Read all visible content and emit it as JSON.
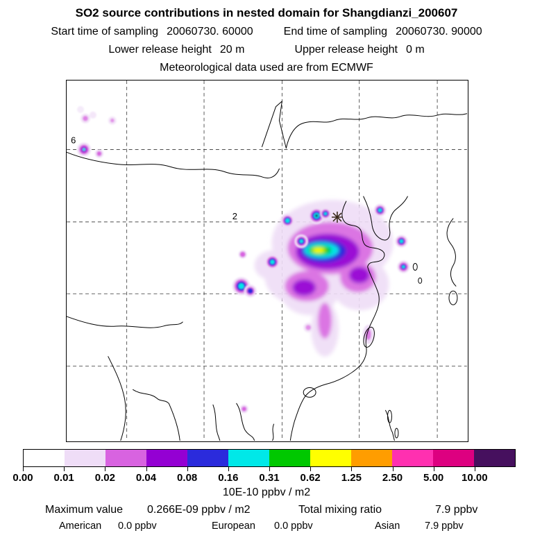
{
  "header": {
    "title": "SO2 source contributions in nested domain for Shangdianzi_200607",
    "sampling": {
      "start_label": "Start time of sampling",
      "start_value": "20060730. 60000",
      "end_label": "End time of sampling",
      "end_value": "20060730. 90000"
    },
    "release": {
      "lower_label": "Lower release height",
      "lower_value": "20 m",
      "upper_label": "Upper release height",
      "upper_value": "0 m"
    },
    "met_source": "Meteorological data used are from ECMWF"
  },
  "map": {
    "inline_labels": [
      {
        "text": "6"
      },
      {
        "text": "2"
      }
    ],
    "marker": "Shangdianzi station"
  },
  "colorbar": {
    "ticks": [
      "0.00",
      "0.01",
      "0.02",
      "0.04",
      "0.08",
      "0.16",
      "0.31",
      "0.62",
      "1.25",
      "2.50",
      "5.00",
      "10.00"
    ],
    "colors": [
      "#ffffff",
      "#efddf7",
      "#d863e0",
      "#9400d3",
      "#2b2bdc",
      "#00e8e8",
      "#00c800",
      "#ffff00",
      "#ff9d00",
      "#ff30b0",
      "#dd0080",
      "#46105e"
    ],
    "units": "10E-10 ppbv / m2"
  },
  "stats": {
    "max_label": "Maximum value",
    "max_value": "0.266E-09 ppbv / m2",
    "total_label": "Total mixing ratio",
    "total_value": "7.9 ppbv",
    "contributions": [
      {
        "region": "American",
        "value": "0.0 ppbv"
      },
      {
        "region": "European",
        "value": "0.0 ppbv"
      },
      {
        "region": "Asian",
        "value": "7.9 ppbv"
      }
    ]
  }
}
